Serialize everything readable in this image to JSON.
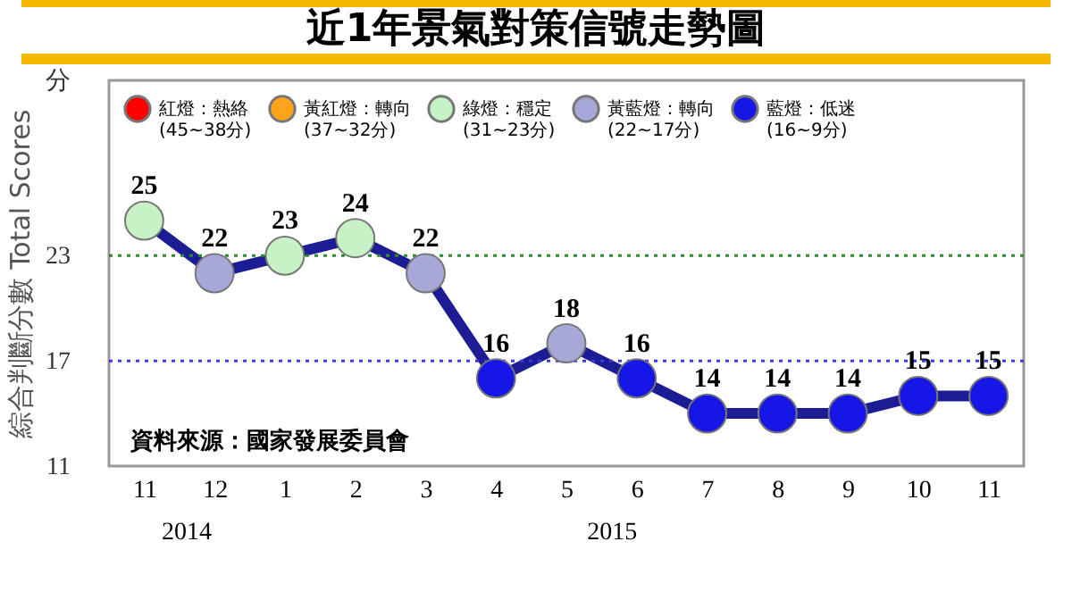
{
  "chart_data": {
    "type": "line",
    "title": "近1年景氣對策信號走勢圖",
    "ylabel": "綜合判斷分數 Total Scores",
    "categories": [
      "11",
      "12",
      "1",
      "2",
      "3",
      "4",
      "5",
      "6",
      "7",
      "8",
      "9",
      "10",
      "11"
    ],
    "series": [
      {
        "type": "line",
        "color": "#1c1c94",
        "marker": "none",
        "values": [
          25,
          22,
          23,
          24,
          22,
          16,
          18,
          16,
          14,
          14,
          14,
          15,
          15
        ]
      },
      {
        "type": "scatter",
        "name": "紅燈：熱絡 (45~38分)",
        "color": "#ff0000",
        "values": [
          null,
          null,
          null,
          null,
          null,
          null,
          null,
          null,
          null,
          null,
          null,
          null,
          null
        ]
      },
      {
        "type": "scatter",
        "name": "黃紅燈：轉向 (37~32分)",
        "color": "#ffa31a",
        "values": [
          null,
          null,
          null,
          null,
          null,
          null,
          null,
          null,
          null,
          null,
          null,
          null,
          null
        ]
      },
      {
        "type": "scatter",
        "name": "綠燈：穩定 (31~23分)",
        "color": "#c6f2c6",
        "values": [
          25,
          null,
          23,
          24,
          null,
          null,
          null,
          null,
          null,
          null,
          null,
          null,
          null
        ],
        "value_labels": [
          "25",
          null,
          "23",
          "24",
          null,
          null,
          null,
          null,
          null,
          null,
          null,
          null,
          null
        ]
      },
      {
        "type": "scatter",
        "name": "黃藍燈：轉向 (22~17分)",
        "color": "#a8a8d8",
        "values": [
          null,
          22,
          null,
          null,
          22,
          null,
          18,
          null,
          null,
          null,
          null,
          null,
          null
        ],
        "value_labels": [
          null,
          "22",
          null,
          null,
          "22",
          null,
          "18",
          null,
          null,
          null,
          null,
          null,
          null
        ]
      },
      {
        "type": "scatter",
        "name": "藍燈：低迷 (16~9分)",
        "color": "#1616e6",
        "values": [
          null,
          null,
          null,
          null,
          null,
          16,
          null,
          16,
          14,
          14,
          14,
          15,
          15
        ],
        "value_labels": [
          null,
          null,
          null,
          null,
          null,
          "16",
          null,
          "16",
          "14",
          "14",
          "14",
          "15",
          "15"
        ]
      }
    ],
    "ylim": [
      11,
      33
    ],
    "yticks": [
      11,
      17,
      23,
      {
        "value": 33,
        "label": "分"
      }
    ],
    "ref_lines": [
      {
        "axis": "y",
        "value": 23,
        "color": "#2e8b2e",
        "line_style": "dotted"
      },
      {
        "axis": "y",
        "value": 17,
        "color": "#3a3ae0",
        "line_style": "dotted"
      }
    ],
    "grid": false,
    "legend": "top left",
    "marker": "circle",
    "annotations": [
      "資料來源：國家發展委員會",
      "2014",
      "2015"
    ]
  }
}
